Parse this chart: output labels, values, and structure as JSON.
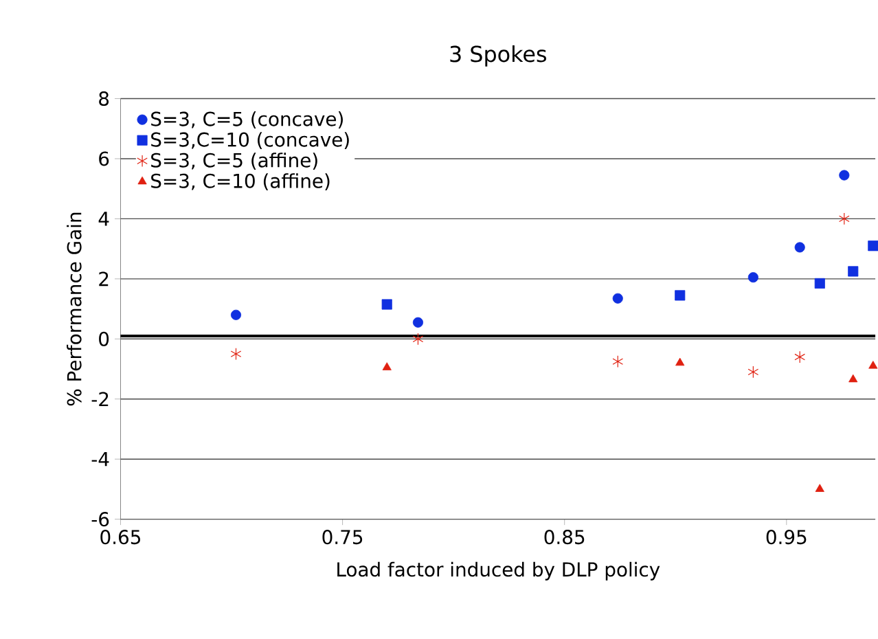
{
  "chart_data": {
    "type": "scatter",
    "title": "3 Spokes",
    "xlabel": "Load factor induced by DLP policy",
    "ylabel": "% Performance Gain",
    "xlim": [
      0.65,
      0.99
    ],
    "xticks": [
      0.65,
      0.75,
      0.85,
      0.95
    ],
    "ylim": [
      -6,
      8
    ],
    "yticks": [
      -6,
      -4,
      -2,
      0,
      2,
      4,
      6,
      8
    ],
    "grid": "y",
    "legend": "top left",
    "ref_lines": [
      {
        "axis": "y",
        "value": 0.1,
        "color": "#000000"
      }
    ],
    "series": [
      {
        "name": "S=3, C=5 (concave)",
        "color": "#1030e0",
        "marker": "circle",
        "x": [
          0.702,
          0.784,
          0.874,
          0.935,
          0.956,
          0.976
        ],
        "values": [
          0.8,
          0.55,
          1.35,
          2.05,
          3.05,
          5.45
        ]
      },
      {
        "name": "S=3,C=10 (concave)",
        "color": "#1030e0",
        "marker": "square",
        "x": [
          0.77,
          0.902,
          0.965,
          0.98,
          0.989
        ],
        "values": [
          1.15,
          1.45,
          1.85,
          2.25,
          3.1
        ]
      },
      {
        "name": "S=3, C=5 (affine)",
        "color": "#e02010",
        "marker": "cross",
        "x": [
          0.702,
          0.784,
          0.874,
          0.935,
          0.956,
          0.976
        ],
        "values": [
          -0.5,
          0.0,
          -0.75,
          -1.1,
          -0.6,
          4.0
        ]
      },
      {
        "name": "S=3, C=10 (affine)",
        "color": "#e02010",
        "marker": "triangle",
        "x": [
          0.77,
          0.902,
          0.965,
          0.98,
          0.989
        ],
        "values": [
          -0.95,
          -0.8,
          -5.0,
          -1.35,
          -0.9
        ]
      }
    ]
  }
}
